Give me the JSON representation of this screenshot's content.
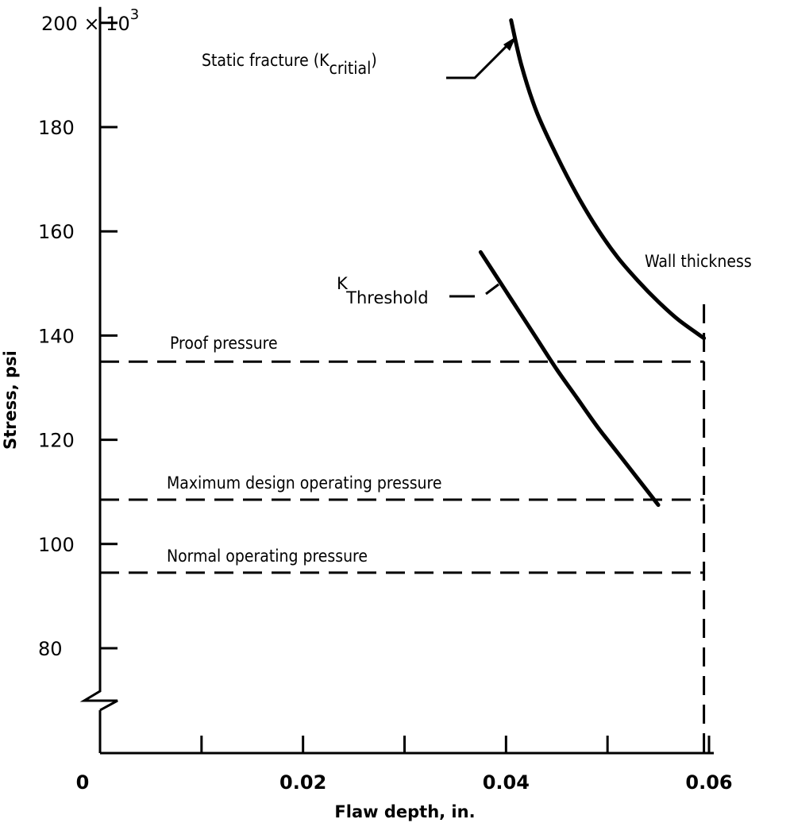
{
  "chart_data": {
    "type": "line",
    "xlabel": "Flaw depth, in.",
    "ylabel": "Stress, psi",
    "xlim": [
      0,
      0.06
    ],
    "ylim": [
      62,
      200
    ],
    "y_axis_break": true,
    "x_ticks": [
      0,
      0.01,
      0.02,
      0.03,
      0.04,
      0.05,
      0.06
    ],
    "x_tick_labels": [
      {
        "value": 0,
        "label": "0"
      },
      {
        "value": 0.02,
        "label": "0.02"
      },
      {
        "value": 0.04,
        "label": "0.04"
      },
      {
        "value": 0.06,
        "label": "0.06"
      }
    ],
    "y_ticks": [
      80,
      100,
      120,
      140,
      160,
      180,
      200
    ],
    "y_tick_labels": [
      {
        "value": 80,
        "label": "80"
      },
      {
        "value": 100,
        "label": "100"
      },
      {
        "value": 120,
        "label": "120"
      },
      {
        "value": 140,
        "label": "140"
      },
      {
        "value": 160,
        "label": "160"
      },
      {
        "value": 180,
        "label": "180"
      }
    ],
    "y_top_label": {
      "value": 200,
      "mantissa": "200 × 10",
      "exponent": "3"
    },
    "series": [
      {
        "name": "Static fracture",
        "label_main": "Static fracture (K",
        "label_sub": "critial",
        "label_close": ")",
        "style": "solid",
        "x": [
          0.0405,
          0.0415,
          0.043,
          0.045,
          0.047,
          0.049,
          0.051,
          0.053,
          0.055,
          0.057,
          0.0595
        ],
        "y": [
          200.5,
          192,
          183,
          174.5,
          167,
          160.5,
          155,
          150.5,
          146.5,
          143,
          139.5
        ]
      },
      {
        "name": "K Threshold",
        "label_main": "K",
        "label_sub": "Threshold",
        "style": "solid",
        "x": [
          0.0375,
          0.039,
          0.041,
          0.043,
          0.045,
          0.047,
          0.049,
          0.051,
          0.053,
          0.055
        ],
        "y": [
          156,
          151.5,
          145.5,
          139.5,
          133.5,
          128,
          122.5,
          117.5,
          112.5,
          107.5
        ]
      }
    ],
    "reference_lines": [
      {
        "label": "Proof pressure",
        "y": 135,
        "x_start": 0,
        "x_end": 0.0595
      },
      {
        "label": "Maximum design operating pressure",
        "y": 108.5,
        "x_start": 0,
        "x_end": 0.0595
      },
      {
        "label": "Normal operating pressure",
        "y": 94.5,
        "x_start": 0,
        "x_end": 0.0595
      }
    ],
    "vertical_lines": [
      {
        "label": "Wall thickness",
        "x": 0.0595,
        "y_start": 62,
        "y_end": 146
      }
    ]
  }
}
